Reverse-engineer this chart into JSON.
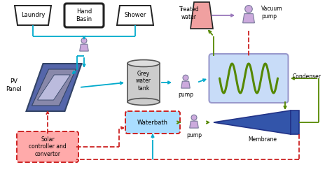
{
  "bg_color": "#ffffff",
  "laundry_label": "Laundry",
  "hand_basin_label": "Hand\nBasin",
  "shower_label": "Shower",
  "treated_water_label": "Treated\nwater",
  "vacuum_pump_label": "Vacuum\npump",
  "pv_panel_label": "PV\nPanel",
  "grey_water_label": "Grey\nwater\ntank",
  "pump1_label": "pump",
  "pump2_label": "pump",
  "condenser_label": "Condenser",
  "water_bath_label": "Waterbath",
  "solar_label": "Solar\ncontroller and\nconvertor",
  "membrane_label": "Membrane",
  "cyan": "#00aacc",
  "red_dashed": "#cc2222",
  "green": "#558800",
  "purple": "#9977bb",
  "condenser_fill": "#c8dcf8",
  "condenser_edge": "#9999cc",
  "membrane_fill": "#3355aa",
  "waterbath_fill": "#aaddff",
  "solar_fill": "#ffaaaa",
  "pump_fill": "#ccaadd",
  "grey_tank_fill": "#cccccc",
  "treated_water_fill": "#f0a0a0",
  "laundry_fill": "#ffffff",
  "pv_outer": "#5566aa",
  "pv_mid": "#8888aa",
  "pv_inner": "#aaaacc",
  "pv_center": "#bbbbdd"
}
